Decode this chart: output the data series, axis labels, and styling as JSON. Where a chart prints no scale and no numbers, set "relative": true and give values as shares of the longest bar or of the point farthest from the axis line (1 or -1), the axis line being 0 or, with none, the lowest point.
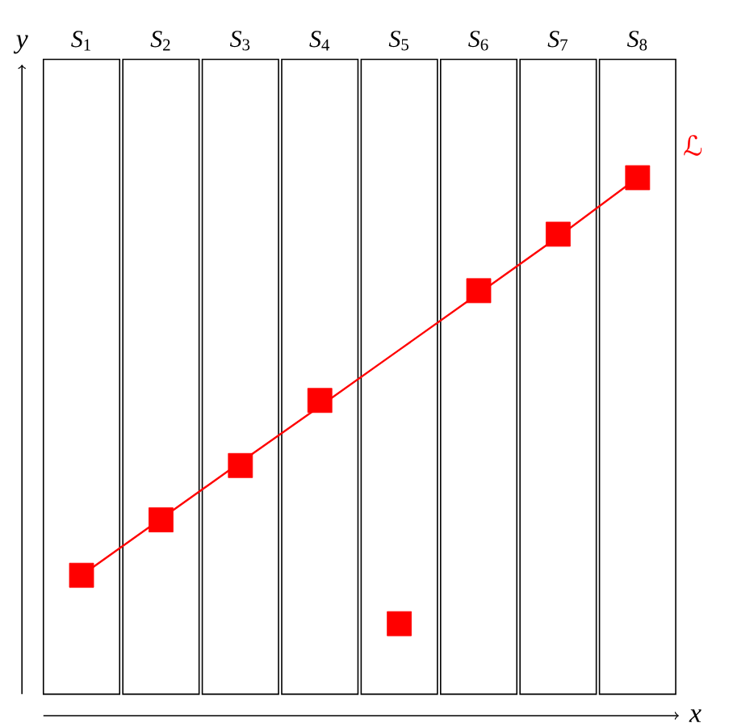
{
  "chart_data": {
    "type": "scatter",
    "relative": true,
    "xlabel": "x",
    "ylabel": "y",
    "marker": "square",
    "categories": [
      "*S*$_{1}$",
      "*S*$_{2}$",
      "*S*$_{3}$",
      "*S*$_{4}$",
      "*S*$_{5}$",
      "*S*$_{6}$",
      "*S*$_{7}$",
      "*S*$_{8}$"
    ],
    "series": [
      {
        "color": "#ff0000",
        "values": [
          0.261,
          0.364,
          0.465,
          0.586,
          0.171,
          0.79,
          0.895,
          1.0
        ]
      },
      {
        "type": "line",
        "name": "ℒ",
        "color": "#ff0000",
        "marker": "none",
        "values": [
          0.261,
          0.366,
          0.471,
          0.575,
          0.68,
          0.785,
          0.89,
          1.0
        ]
      }
    ]
  }
}
